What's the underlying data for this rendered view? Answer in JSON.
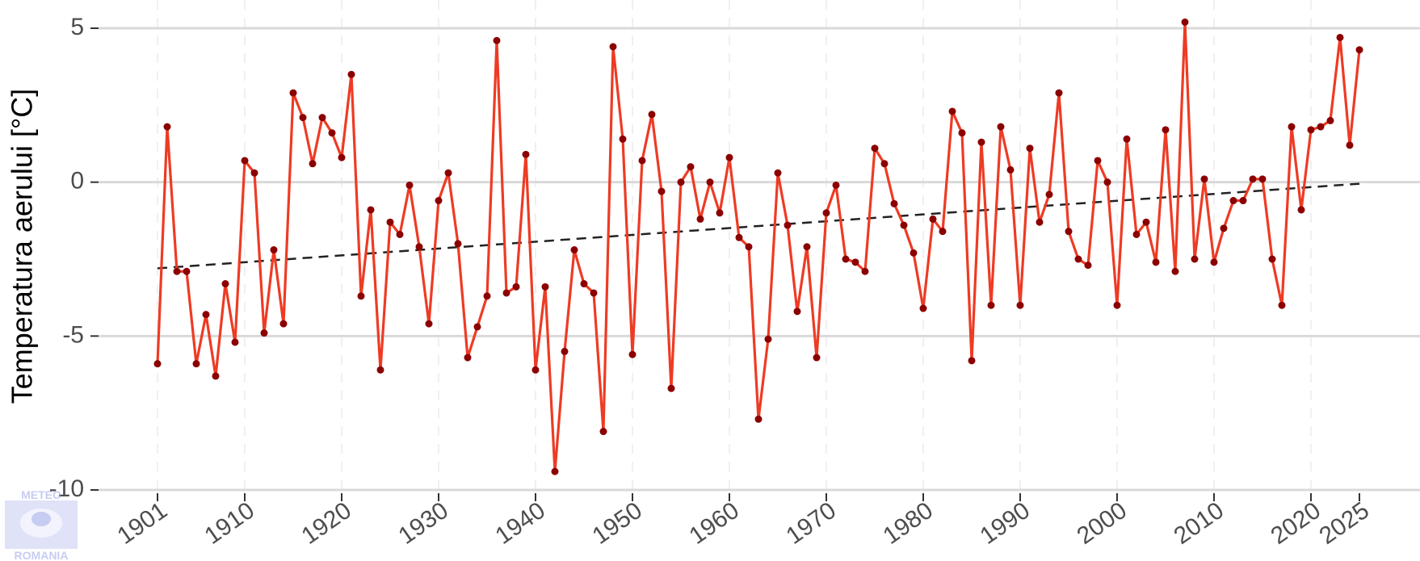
{
  "chart_data": {
    "type": "line",
    "title": "",
    "xlabel": "",
    "ylabel": "Temperatura aerului [°C]",
    "xlim": [
      1901,
      2025
    ],
    "ylim": [
      -10,
      5
    ],
    "x_ticks": [
      1901,
      1910,
      1920,
      1930,
      1940,
      1950,
      1960,
      1970,
      1980,
      1990,
      2000,
      2010,
      2020,
      2025
    ],
    "y_ticks": [
      -10,
      -5,
      0,
      5
    ],
    "y_tick_labels": [
      "-10",
      "-5",
      "0",
      "5"
    ],
    "grid": true,
    "legend": "none",
    "colors": {
      "line": "#ee3b24",
      "point": "#8b0000",
      "trend": "#222222",
      "grid_major": "#d9d9d9",
      "grid_minor": "#ebebeb"
    },
    "series": [
      {
        "x": [
          1901,
          1902,
          1903,
          1904,
          1905,
          1906,
          1907,
          1908,
          1909,
          1910,
          1911,
          1912,
          1913,
          1914,
          1915,
          1916,
          1917,
          1918,
          1919,
          1920,
          1921,
          1922,
          1923,
          1924,
          1925,
          1926,
          1927,
          1928,
          1929,
          1930,
          1931,
          1932,
          1933,
          1934,
          1935,
          1936,
          1937,
          1938,
          1939,
          1940,
          1941,
          1942,
          1943,
          1944,
          1945,
          1946,
          1947,
          1948,
          1949,
          1950,
          1951,
          1952,
          1953,
          1954,
          1955,
          1956,
          1957,
          1958,
          1959,
          1960,
          1961,
          1962,
          1963,
          1964,
          1965,
          1966,
          1967,
          1968,
          1969,
          1970,
          1971,
          1972,
          1973,
          1974,
          1975,
          1976,
          1977,
          1978,
          1979,
          1980,
          1981,
          1982,
          1983,
          1984,
          1985,
          1986,
          1987,
          1988,
          1989,
          1990,
          1991,
          1992,
          1993,
          1994,
          1995,
          1996,
          1997,
          1998,
          1999,
          2000,
          2001,
          2002,
          2003,
          2004,
          2005,
          2006,
          2007,
          2008,
          2009,
          2010,
          2011,
          2012,
          2013,
          2014,
          2015,
          2016,
          2017,
          2018,
          2019,
          2020,
          2021,
          2022,
          2023,
          2024,
          2025
        ],
        "values": [
          -5.9,
          1.8,
          -2.9,
          -2.9,
          -5.9,
          -4.3,
          -6.3,
          -3.3,
          -5.2,
          0.7,
          0.3,
          -4.9,
          -2.2,
          -4.6,
          2.9,
          2.1,
          0.6,
          2.1,
          1.6,
          0.8,
          3.5,
          -3.7,
          -0.9,
          -6.1,
          -1.3,
          -1.7,
          -0.1,
          -2.1,
          -4.6,
          -0.6,
          0.3,
          -2.0,
          -5.7,
          -4.7,
          -3.7,
          4.6,
          -3.6,
          -3.4,
          0.9,
          -6.1,
          -3.4,
          -9.4,
          -5.5,
          -2.2,
          -3.3,
          -3.6,
          -8.1,
          4.4,
          1.4,
          -5.6,
          0.7,
          2.2,
          -0.3,
          -6.7,
          0.0,
          0.5,
          -1.2,
          0.0,
          -1.0,
          0.8,
          -1.8,
          -2.1,
          -7.7,
          -5.1,
          0.3,
          -1.4,
          -4.2,
          -2.1,
          -5.7,
          -1.0,
          -0.1,
          -2.5,
          -2.6,
          -2.9,
          1.1,
          0.6,
          -0.7,
          -1.4,
          -2.3,
          -4.1,
          -1.2,
          -1.6,
          2.3,
          1.6,
          -5.8,
          1.3,
          -4.0,
          1.8,
          0.4,
          -4.0,
          1.1,
          -1.3,
          -0.4,
          2.9,
          -1.6,
          -2.5,
          -2.7,
          0.7,
          0.0,
          -4.0,
          1.4,
          -1.7,
          -1.3,
          -2.6,
          1.7,
          -2.9,
          5.2,
          -2.5,
          0.1,
          -2.6,
          -1.5,
          -0.6,
          -0.6,
          0.1,
          0.1,
          -2.5,
          -4.0,
          1.8,
          -0.9,
          1.7,
          1.8,
          2.0,
          4.7,
          1.2,
          4.3
        ]
      }
    ],
    "trend": {
      "x": [
        1901,
        2025
      ],
      "values": [
        -2.8,
        -0.05
      ]
    }
  },
  "logo": {
    "top_text": "METEO",
    "bottom_text": "ROMANIA"
  }
}
